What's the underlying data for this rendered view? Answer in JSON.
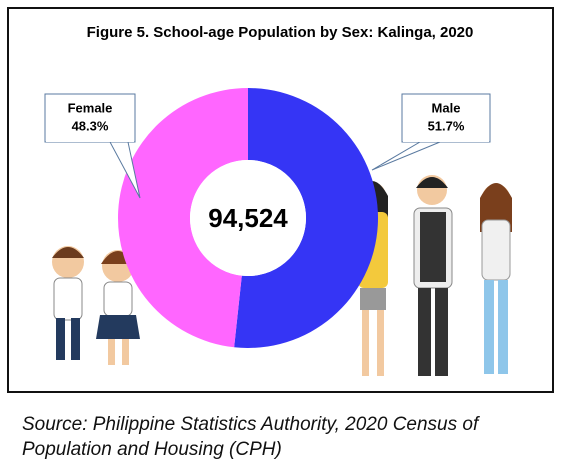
{
  "chart_data": {
    "type": "donut",
    "title": "Figure 5. School-age Population by Sex: Kalinga, 2020",
    "center_label": "94,524",
    "categories": [
      "Male",
      "Female"
    ],
    "values": [
      51.7,
      48.3
    ],
    "value_labels": [
      "51.7%",
      "48.3%"
    ],
    "colors": [
      "#3535f5",
      "#ff66ff"
    ]
  },
  "source": "Source: Philippine Statistics Authority, 2020 Census of Population and Housing (CPH)"
}
